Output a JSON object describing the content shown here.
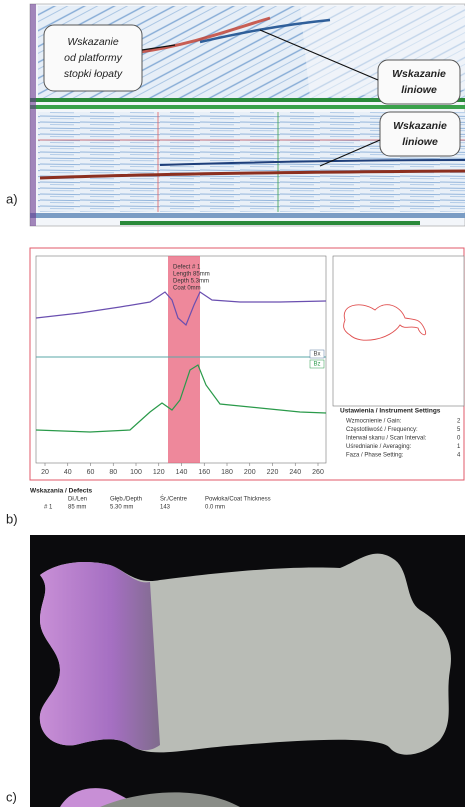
{
  "panels": [
    {
      "label": "a)",
      "callouts": [
        {
          "lines": [
            "Wskazanie",
            "od platformy",
            "stopki łopaty"
          ]
        },
        {
          "lines": [
            "Wskazanie",
            "liniowe"
          ]
        },
        {
          "lines": [
            "Wskazanie",
            "liniowe"
          ]
        }
      ]
    },
    {
      "label": "b)",
      "plot": {
        "x_ticks": [
          20,
          40,
          60,
          80,
          100,
          120,
          140,
          160,
          180,
          200,
          220,
          240,
          260
        ],
        "channels": [
          "Bx",
          "Bz"
        ],
        "defect_label": [
          "Defect # 1",
          "Length 85mm",
          "Depth 5.3mm",
          "Coat 0mm"
        ]
      },
      "settings": {
        "title": "Ustawienia / Instrument Settings",
        "rows": [
          [
            "Wzmocnienie / Gain:",
            "2"
          ],
          [
            "Częstotliwość / Frequency:",
            "5"
          ],
          [
            "Interwał skanu / Scan Interval:",
            "0"
          ],
          [
            "Uśrednianie / Averaging:",
            "1"
          ],
          [
            "Faza / Phase Setting:",
            "4"
          ]
        ]
      },
      "defects": {
        "title": "Wskazania / Defects",
        "columns": [
          "Dł./Len",
          "Głęb./Depth",
          "Śr./Centre",
          "Powłoka/Coat Thickness"
        ],
        "rows": [
          [
            "# 1",
            "85 mm",
            "5.30 mm",
            "143",
            "0.0 mm"
          ]
        ]
      }
    },
    {
      "label": "c)"
    }
  ]
}
